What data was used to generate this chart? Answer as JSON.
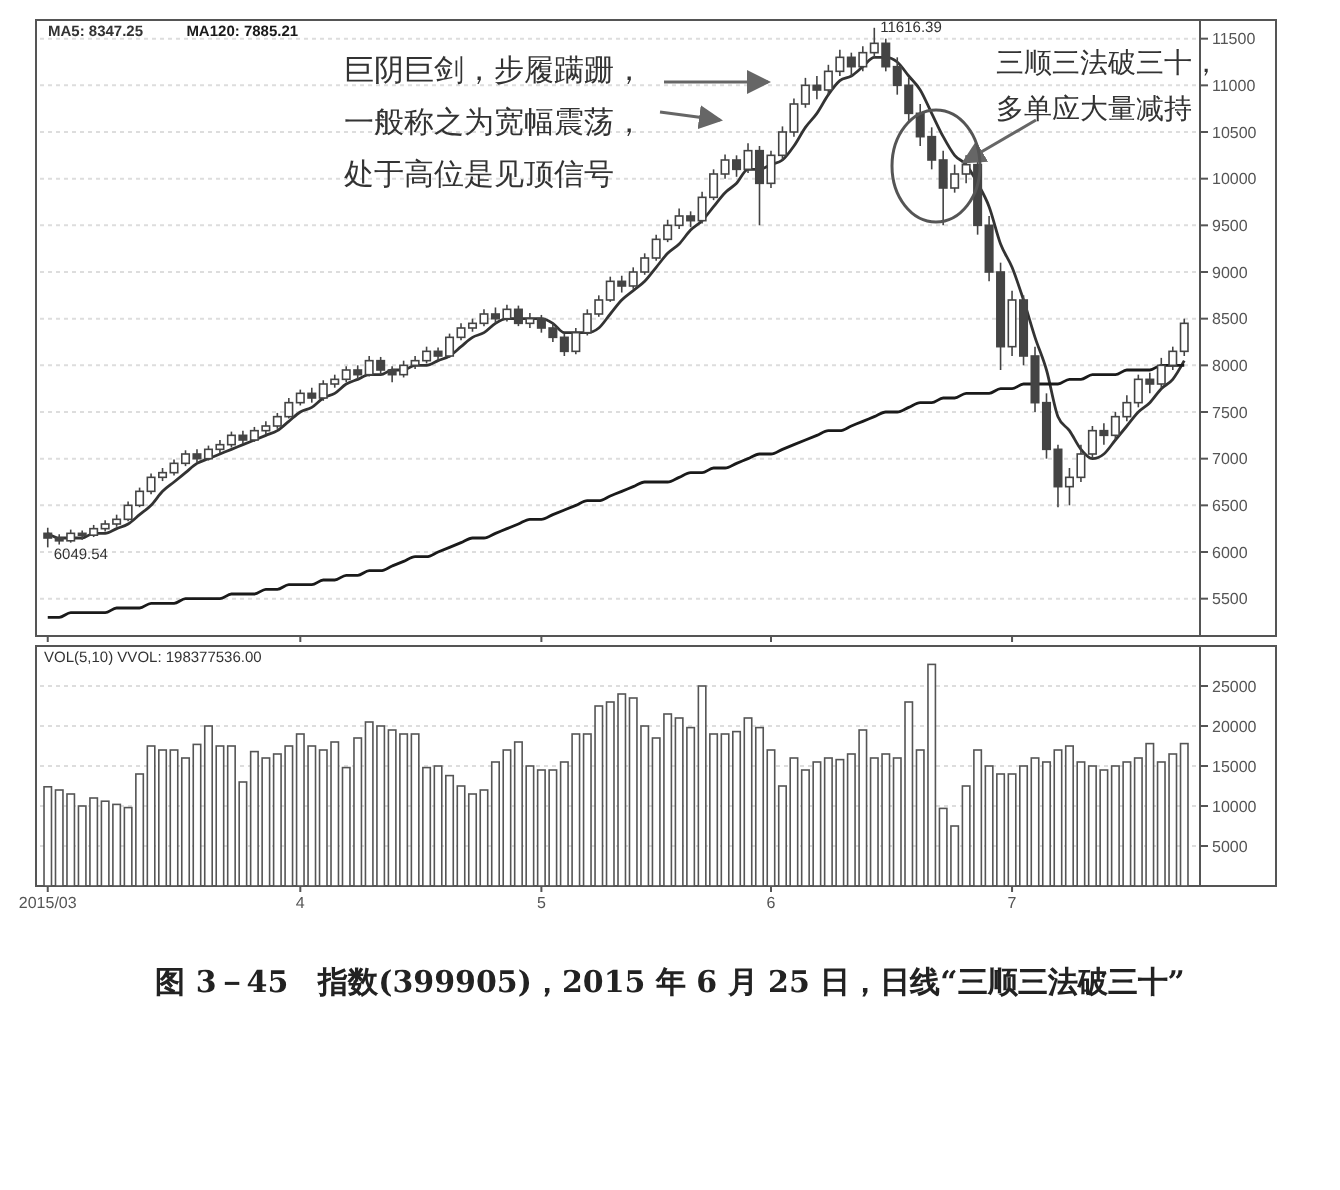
{
  "chart_data": [
    {
      "type": "candlestick",
      "title": "图 3－45　指数(399905)，2015 年 6 月 25 日，日线“三顺三法破三十”",
      "categories": [
        "2015/03",
        null,
        null,
        null,
        null,
        null,
        null,
        null,
        null,
        null,
        null,
        null,
        null,
        null,
        null,
        null,
        null,
        null,
        null,
        null,
        null,
        null,
        "4",
        null,
        null,
        null,
        null,
        null,
        null,
        null,
        null,
        null,
        null,
        null,
        null,
        null,
        null,
        null,
        null,
        null,
        null,
        null,
        null,
        "5",
        null,
        null,
        null,
        null,
        null,
        null,
        null,
        null,
        null,
        null,
        null,
        null,
        null,
        null,
        null,
        null,
        null,
        null,
        null,
        "6",
        null,
        null,
        null,
        null,
        null,
        null,
        null,
        null,
        null,
        null,
        null,
        null,
        null,
        null,
        null,
        null,
        null,
        null,
        null,
        null,
        "7",
        null,
        null,
        null,
        null,
        null,
        null,
        null,
        null,
        null,
        null,
        null,
        null,
        null,
        null,
        null
      ],
      "ohlc": [
        [
          6200,
          6260,
          6049.54,
          6150
        ],
        [
          6150,
          6190,
          6080,
          6120
        ],
        [
          6120,
          6240,
          6100,
          6200
        ],
        [
          6200,
          6230,
          6130,
          6180
        ],
        [
          6180,
          6290,
          6160,
          6250
        ],
        [
          6250,
          6340,
          6220,
          6300
        ],
        [
          6300,
          6400,
          6270,
          6350
        ],
        [
          6350,
          6540,
          6330,
          6500
        ],
        [
          6500,
          6690,
          6480,
          6650
        ],
        [
          6650,
          6840,
          6620,
          6800
        ],
        [
          6800,
          6900,
          6760,
          6850
        ],
        [
          6850,
          6990,
          6820,
          6950
        ],
        [
          6950,
          7090,
          6920,
          7050
        ],
        [
          7050,
          7100,
          6960,
          7000
        ],
        [
          7000,
          7140,
          6980,
          7100
        ],
        [
          7100,
          7200,
          7060,
          7150
        ],
        [
          7150,
          7290,
          7120,
          7250
        ],
        [
          7250,
          7300,
          7160,
          7200
        ],
        [
          7200,
          7340,
          7180,
          7300
        ],
        [
          7300,
          7400,
          7260,
          7350
        ],
        [
          7350,
          7490,
          7320,
          7450
        ],
        [
          7450,
          7650,
          7430,
          7600
        ],
        [
          7600,
          7740,
          7570,
          7700
        ],
        [
          7700,
          7760,
          7600,
          7650
        ],
        [
          7650,
          7840,
          7620,
          7800
        ],
        [
          7800,
          7900,
          7760,
          7850
        ],
        [
          7850,
          7990,
          7820,
          7950
        ],
        [
          7950,
          8000,
          7850,
          7900
        ],
        [
          7900,
          8100,
          7880,
          8050
        ],
        [
          8050,
          8090,
          7900,
          7950
        ],
        [
          7950,
          7990,
          7820,
          7900
        ],
        [
          7900,
          8050,
          7870,
          8000
        ],
        [
          8000,
          8100,
          7960,
          8050
        ],
        [
          8050,
          8200,
          8020,
          8150
        ],
        [
          8150,
          8190,
          8050,
          8100
        ],
        [
          8100,
          8340,
          8080,
          8300
        ],
        [
          8300,
          8450,
          8270,
          8400
        ],
        [
          8400,
          8500,
          8360,
          8450
        ],
        [
          8450,
          8600,
          8420,
          8550
        ],
        [
          8550,
          8620,
          8450,
          8500
        ],
        [
          8500,
          8650,
          8470,
          8600
        ],
        [
          8600,
          8640,
          8420,
          8450
        ],
        [
          8450,
          8560,
          8400,
          8500
        ],
        [
          8500,
          8540,
          8350,
          8400
        ],
        [
          8400,
          8450,
          8250,
          8300
        ],
        [
          8300,
          8340,
          8100,
          8150
        ],
        [
          8150,
          8400,
          8120,
          8350
        ],
        [
          8350,
          8600,
          8320,
          8550
        ],
        [
          8550,
          8750,
          8520,
          8700
        ],
        [
          8700,
          8950,
          8680,
          8900
        ],
        [
          8900,
          8960,
          8780,
          8850
        ],
        [
          8850,
          9050,
          8820,
          9000
        ],
        [
          9000,
          9200,
          8970,
          9150
        ],
        [
          9150,
          9400,
          9120,
          9350
        ],
        [
          9350,
          9560,
          9320,
          9500
        ],
        [
          9500,
          9680,
          9460,
          9600
        ],
        [
          9600,
          9650,
          9480,
          9550
        ],
        [
          9550,
          9860,
          9520,
          9800
        ],
        [
          9800,
          10100,
          9770,
          10050
        ],
        [
          10050,
          10260,
          10000,
          10200
        ],
        [
          10200,
          10250,
          10020,
          10100
        ],
        [
          10100,
          10380,
          10060,
          10300
        ],
        [
          10300,
          10350,
          9500,
          9950
        ],
        [
          9950,
          10300,
          9900,
          10250
        ],
        [
          10250,
          10560,
          10200,
          10500
        ],
        [
          10500,
          10860,
          10450,
          10800
        ],
        [
          10800,
          11080,
          10760,
          11000
        ],
        [
          11000,
          11100,
          10850,
          10950
        ],
        [
          10950,
          11220,
          10900,
          11150
        ],
        [
          11150,
          11380,
          11100,
          11300
        ],
        [
          11300,
          11350,
          11100,
          11200
        ],
        [
          11200,
          11420,
          11150,
          11350
        ],
        [
          11350,
          11616.39,
          11300,
          11450
        ],
        [
          11450,
          11500,
          11150,
          11200
        ],
        [
          11200,
          11300,
          10900,
          11000
        ],
        [
          11000,
          11080,
          10600,
          10700
        ],
        [
          10700,
          10800,
          10350,
          10450
        ],
        [
          10450,
          10550,
          10100,
          10200
        ],
        [
          10200,
          10300,
          9500,
          9900
        ],
        [
          9900,
          10150,
          9850,
          10050
        ],
        [
          10050,
          10250,
          9950,
          10150
        ],
        [
          10150,
          10200,
          9400,
          9500
        ],
        [
          9500,
          9600,
          8900,
          9000
        ],
        [
          9000,
          9100,
          7950,
          8200
        ],
        [
          8200,
          8800,
          8100,
          8700
        ],
        [
          8700,
          8750,
          8000,
          8100
        ],
        [
          8100,
          8200,
          7500,
          7600
        ],
        [
          7600,
          7700,
          7000,
          7100
        ],
        [
          7100,
          7150,
          6480,
          6700
        ],
        [
          6700,
          6900,
          6500,
          6800
        ],
        [
          6800,
          7150,
          6750,
          7050
        ],
        [
          7050,
          7350,
          7000,
          7300
        ],
        [
          7300,
          7380,
          7150,
          7250
        ],
        [
          7250,
          7500,
          7200,
          7450
        ],
        [
          7450,
          7680,
          7400,
          7600
        ],
        [
          7600,
          7900,
          7550,
          7850
        ],
        [
          7850,
          7920,
          7700,
          7800
        ],
        [
          7800,
          8080,
          7760,
          8000
        ],
        [
          8000,
          8200,
          7950,
          8150
        ],
        [
          8150,
          8500,
          8100,
          8450
        ]
      ],
      "series": [
        {
          "type": "line",
          "name": "MA5: 8347.25",
          "color": "#333333",
          "values": [
            6200,
            6150,
            6150,
            6150,
            6200,
            6200,
            6250,
            6300,
            6400,
            6500,
            6650,
            6750,
            6850,
            6950,
            7000,
            7050,
            7100,
            7150,
            7200,
            7250,
            7300,
            7400,
            7500,
            7550,
            7650,
            7700,
            7800,
            7850,
            7900,
            7900,
            7950,
            7950,
            8000,
            8000,
            8050,
            8100,
            8200,
            8300,
            8350,
            8450,
            8500,
            8500,
            8500,
            8500,
            8450,
            8350,
            8350,
            8350,
            8400,
            8550,
            8700,
            8800,
            8900,
            9050,
            9200,
            9300,
            9450,
            9550,
            9700,
            9850,
            9950,
            10100,
            10100,
            10150,
            10200,
            10350,
            10550,
            10700,
            10900,
            11050,
            11100,
            11200,
            11300,
            11300,
            11250,
            11100,
            10950,
            10700,
            10450,
            10250,
            10150,
            9950,
            9700,
            9300,
            9050,
            8700,
            8300,
            7950,
            7450,
            7300,
            7100,
            7000,
            7050,
            7200,
            7350,
            7500,
            7600,
            7750,
            7850,
            8050
          ]
        },
        {
          "type": "line",
          "name": "MA120: 7885.21",
          "color": "#1a1a1a",
          "values": [
            5300,
            5300,
            5350,
            5350,
            5350,
            5350,
            5400,
            5400,
            5400,
            5450,
            5450,
            5450,
            5500,
            5500,
            5500,
            5500,
            5550,
            5550,
            5550,
            5600,
            5600,
            5650,
            5650,
            5650,
            5700,
            5700,
            5750,
            5750,
            5800,
            5800,
            5850,
            5900,
            5950,
            5950,
            6000,
            6050,
            6100,
            6150,
            6150,
            6200,
            6250,
            6300,
            6350,
            6350,
            6400,
            6450,
            6500,
            6550,
            6550,
            6600,
            6650,
            6700,
            6750,
            6750,
            6750,
            6800,
            6850,
            6850,
            6900,
            6900,
            6950,
            7000,
            7050,
            7050,
            7100,
            7150,
            7200,
            7250,
            7300,
            7300,
            7350,
            7400,
            7450,
            7500,
            7500,
            7550,
            7600,
            7600,
            7650,
            7650,
            7700,
            7700,
            7700,
            7750,
            7750,
            7800,
            7800,
            7800,
            7800,
            7850,
            7850,
            7900,
            7900,
            7900,
            7950,
            7950,
            7950,
            8000,
            8000,
            8000
          ]
        }
      ],
      "color": "#444444",
      "ylim": [
        5100,
        11700
      ],
      "yticks": [
        5500,
        6000,
        6500,
        7000,
        7500,
        8000,
        8500,
        9000,
        9500,
        10000,
        10500,
        11000,
        11500
      ],
      "tick_labels": "y",
      "grid": "y",
      "legend": "top left",
      "annotations": [
        "巨阴巨剑，步履蹒跚，",
        "一般称之为宽幅震荡，",
        "处于高位是见顶信号",
        "三顺三法破三十，",
        "多单应大量减持",
        "11616.39",
        "6049.54"
      ]
    },
    {
      "type": "bar",
      "color": "#555555",
      "categories": [
        "2015/03",
        null,
        null,
        null,
        null,
        null,
        null,
        null,
        null,
        null,
        null,
        null,
        null,
        null,
        null,
        null,
        null,
        null,
        null,
        null,
        null,
        null,
        "4",
        null,
        null,
        null,
        null,
        null,
        null,
        null,
        null,
        null,
        null,
        null,
        null,
        null,
        null,
        null,
        null,
        null,
        null,
        null,
        null,
        "5",
        null,
        null,
        null,
        null,
        null,
        null,
        null,
        null,
        null,
        null,
        null,
        null,
        null,
        null,
        null,
        null,
        null,
        null,
        null,
        "6",
        null,
        null,
        null,
        null,
        null,
        null,
        null,
        null,
        null,
        null,
        null,
        null,
        null,
        null,
        null,
        null,
        null,
        null,
        null,
        null,
        "7",
        null,
        null,
        null,
        null,
        null,
        null,
        null,
        null,
        null,
        null,
        null,
        null,
        null,
        null,
        null
      ],
      "values": [
        12400,
        12000,
        11500,
        10000,
        11000,
        10600,
        10200,
        9800,
        14000,
        17500,
        17000,
        17000,
        16000,
        17700,
        20000,
        17500,
        17500,
        13000,
        16800,
        16000,
        16500,
        17500,
        19000,
        17500,
        17000,
        18000,
        14800,
        18500,
        20500,
        20000,
        19500,
        19000,
        19000,
        14800,
        15000,
        13800,
        12500,
        11500,
        12000,
        15500,
        17000,
        18000,
        15000,
        14500,
        14500,
        15500,
        19000,
        19000,
        22500,
        23000,
        24000,
        23500,
        20000,
        18500,
        21500,
        21000,
        19800,
        25000,
        19000,
        19000,
        19300,
        21000,
        19800,
        17000,
        12500,
        16000,
        14500,
        15500,
        16000,
        15800,
        16500,
        19500,
        16000,
        16500,
        16000,
        23000,
        17000,
        27700,
        9700,
        7500,
        12500,
        17000,
        15000,
        14000,
        14000,
        15000,
        16000,
        15500,
        17000,
        17500,
        15500,
        15000,
        14500,
        15000,
        15500,
        16000,
        17800,
        15500,
        16500,
        17800
      ],
      "ylim": [
        0,
        30000
      ],
      "yticks": [
        5000,
        10000,
        15000,
        20000,
        25000
      ],
      "grid": "y",
      "annotations": [
        "VOL(5,10) VVOL: 198377536.00"
      ]
    }
  ]
}
